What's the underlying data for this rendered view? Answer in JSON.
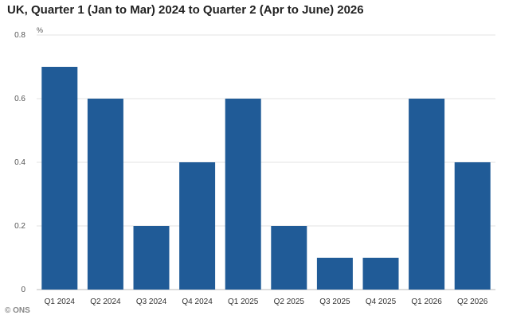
{
  "title": "UK, Quarter 1 (Jan to Mar) 2024 to Quarter 2 (Apr to June) 2026",
  "credit": "© ONS",
  "chart_data": {
    "type": "bar",
    "title": "UK, Quarter 1 (Jan to Mar) 2024 to Quarter 2 (Apr to June) 2026",
    "unit_label": "%",
    "categories": [
      "Q1 2024",
      "Q2 2024",
      "Q3 2024",
      "Q4 2024",
      "Q1 2025",
      "Q2 2025",
      "Q3 2025",
      "Q4 2025",
      "Q1 2026",
      "Q2 2026"
    ],
    "values": [
      0.7,
      0.6,
      0.2,
      0.4,
      0.6,
      0.2,
      0.1,
      0.1,
      0.6,
      0.4
    ],
    "ylim": [
      0,
      0.8
    ],
    "yticks": [
      "0",
      "0.2",
      "0.4",
      "0.6",
      "0.8"
    ],
    "grid": true,
    "bar_color": "#205b97",
    "legend": "none"
  }
}
